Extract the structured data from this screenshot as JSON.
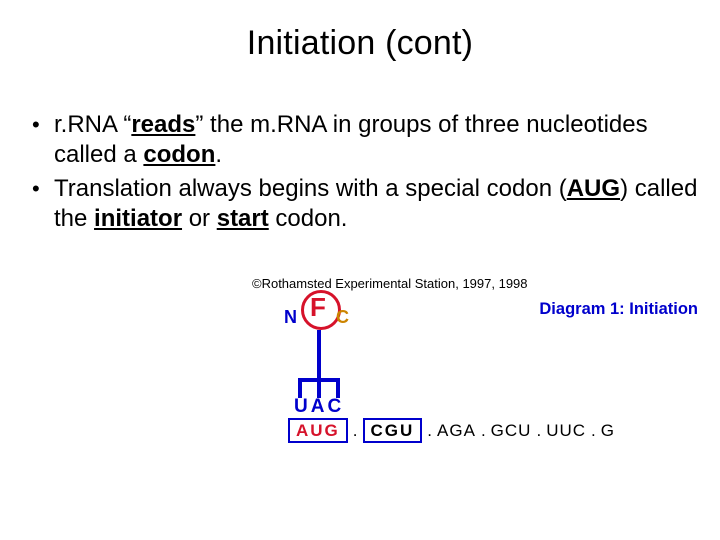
{
  "slide": {
    "title": "Initiation (cont)",
    "bullets": [
      {
        "pre": "r.RNA “",
        "key": "reads",
        "mid": "” the m.RNA in groups of three nucleotides called a ",
        "term": "codon",
        "post": "."
      },
      {
        "pre": "Translation always begins with a special codon (",
        "aug": "AUG",
        "mid2": ") called the ",
        "term1": "initiator",
        "or": " or ",
        "term2": "start",
        "post": " codon."
      }
    ]
  },
  "diagram": {
    "copyright": "©Rothamsted Experimental Station, 1997, 1998",
    "label": "Diagram 1: Initiation",
    "fmet": {
      "N": "N",
      "F": "F",
      "C": "C"
    },
    "anticodon": "UAC",
    "codons": {
      "start": "AUG",
      "second": "CGU",
      "rest": [
        "AGA",
        "GCU",
        "UUC",
        "G"
      ]
    },
    "colors": {
      "red": "#d6122a",
      "blue": "#0000cc",
      "gold": "#cc8400",
      "text": "#000000",
      "bg": "#ffffff"
    },
    "typography": {
      "title_pt": 34,
      "body_pt": 24,
      "diagram_label_pt": 16.5,
      "codon_pt": 17,
      "anticodon_pt": 19
    }
  }
}
